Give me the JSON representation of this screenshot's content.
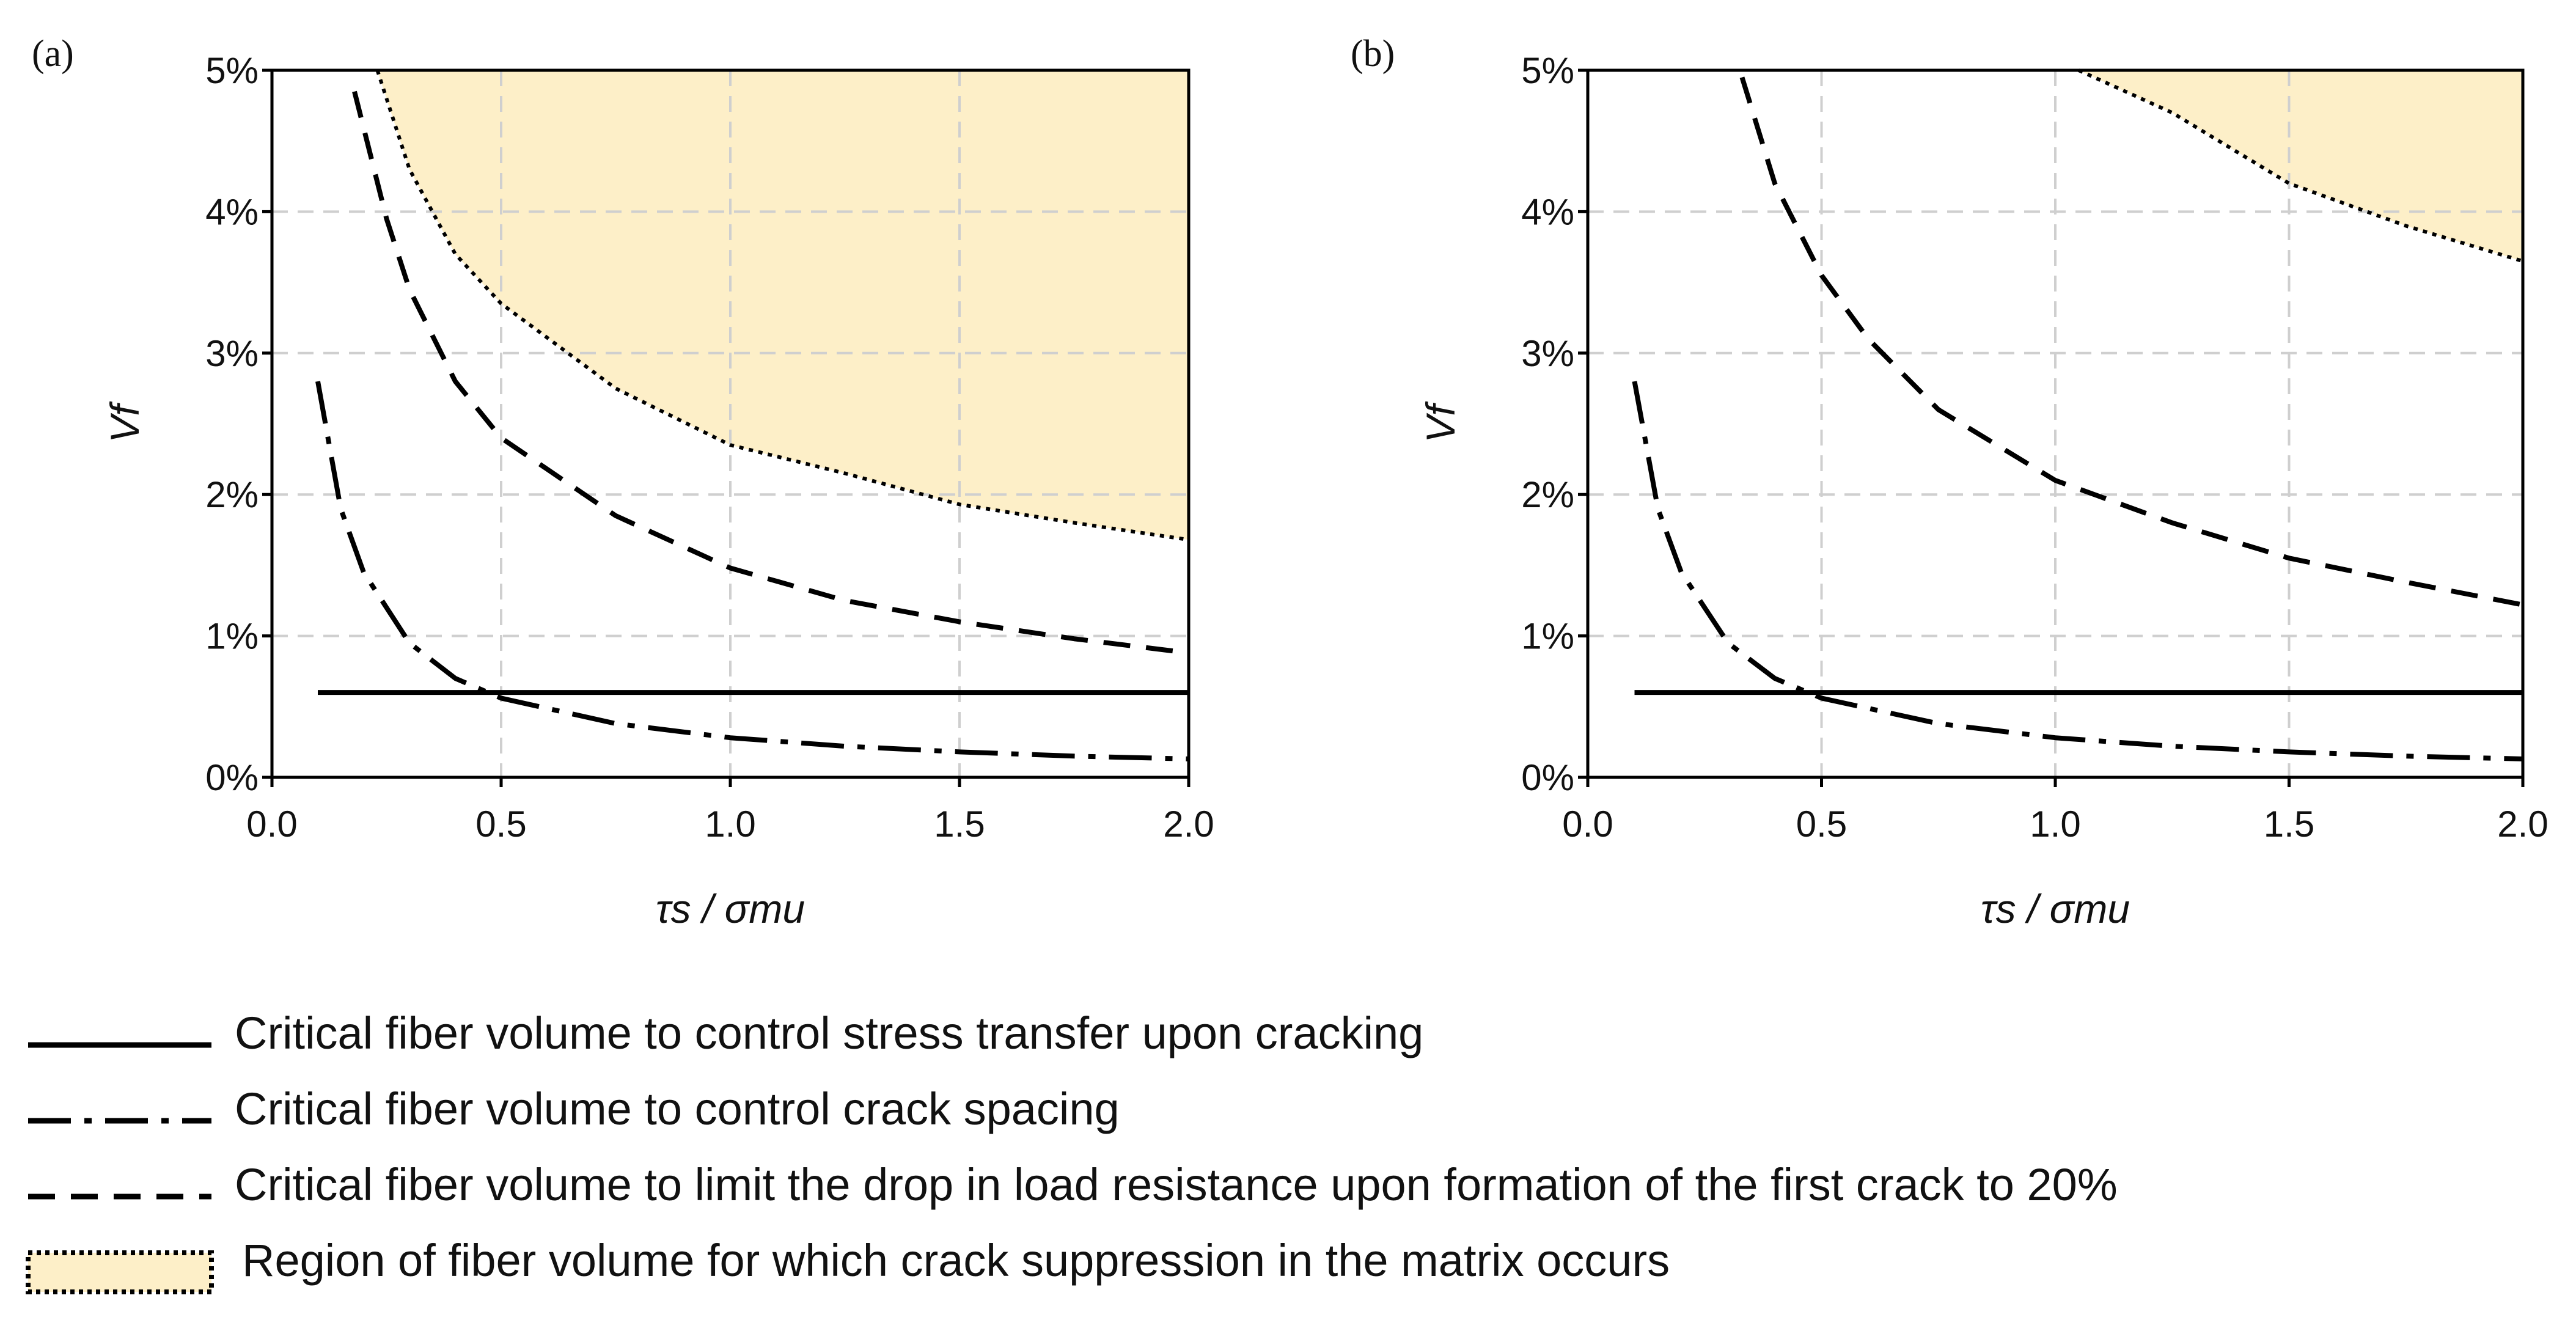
{
  "figure": {
    "legend": [
      {
        "style": "solid",
        "label": "Critical fiber volume to control stress transfer upon cracking"
      },
      {
        "style": "dashdot",
        "label": "Critical fiber volume to control crack spacing"
      },
      {
        "style": "dashed",
        "label": "Critical fiber volume to limit the drop in load resistance upon formation of the first crack to 20%"
      },
      {
        "style": "region",
        "label": "Region of fiber volume for which crack suppression in the matrix occurs"
      }
    ],
    "colors": {
      "region_fill": "#fdefc8",
      "line": "#000000",
      "grid": "#cfcfcf"
    }
  },
  "chart_data": [
    {
      "type": "line",
      "panel_label": "(a)",
      "xlabel": "τs / σmu",
      "ylabel": "Vf",
      "xlim": [
        0,
        2
      ],
      "ylim": [
        0,
        5
      ],
      "grid": true,
      "x_ticks": [
        0,
        0.5,
        1,
        1.5,
        2
      ],
      "x_tick_labels": [
        "0.0",
        "0.5",
        "1.0",
        "1.5",
        "2.0"
      ],
      "y_ticks": [
        0,
        1,
        2,
        3,
        4,
        5
      ],
      "y_tick_labels": [
        "0%",
        "1%",
        "2%",
        "3%",
        "4%",
        "5%"
      ],
      "series": [
        {
          "name": "Critical fiber volume to control stress transfer upon cracking",
          "style": "solid",
          "points": [
            [
              0.1,
              0.6
            ],
            [
              2.0,
              0.6
            ]
          ]
        },
        {
          "name": "Critical fiber volume to control crack spacing",
          "style": "dashdot",
          "points": [
            [
              0.1,
              2.8
            ],
            [
              0.15,
              1.9
            ],
            [
              0.2,
              1.45
            ],
            [
              0.3,
              0.95
            ],
            [
              0.4,
              0.7
            ],
            [
              0.5,
              0.56
            ],
            [
              0.75,
              0.38
            ],
            [
              1.0,
              0.28
            ],
            [
              1.25,
              0.22
            ],
            [
              1.5,
              0.18
            ],
            [
              1.75,
              0.15
            ],
            [
              2.0,
              0.13
            ]
          ]
        },
        {
          "name": "Critical fiber volume to limit the drop in load resistance upon formation of the first crack to 20%",
          "style": "dashed",
          "points": [
            [
              0.18,
              4.85
            ],
            [
              0.25,
              3.95
            ],
            [
              0.3,
              3.45
            ],
            [
              0.4,
              2.8
            ],
            [
              0.5,
              2.4
            ],
            [
              0.75,
              1.85
            ],
            [
              1.0,
              1.48
            ],
            [
              1.25,
              1.25
            ],
            [
              1.5,
              1.1
            ],
            [
              1.75,
              0.98
            ],
            [
              2.0,
              0.88
            ]
          ]
        },
        {
          "name": "Region of fiber volume for which crack suppression in the matrix occurs",
          "style": "dotted-region",
          "points": [
            [
              0.23,
              5.0
            ],
            [
              0.3,
              4.3
            ],
            [
              0.4,
              3.7
            ],
            [
              0.5,
              3.35
            ],
            [
              0.75,
              2.75
            ],
            [
              1.0,
              2.35
            ],
            [
              1.25,
              2.15
            ],
            [
              1.5,
              1.93
            ],
            [
              1.75,
              1.8
            ],
            [
              2.0,
              1.68
            ]
          ]
        }
      ]
    },
    {
      "type": "line",
      "panel_label": "(b)",
      "xlabel": "τs / σmu",
      "ylabel": "Vf",
      "xlim": [
        0,
        2
      ],
      "ylim": [
        0,
        5
      ],
      "grid": true,
      "x_ticks": [
        0,
        0.5,
        1,
        1.5,
        2
      ],
      "x_tick_labels": [
        "0.0",
        "0.5",
        "1.0",
        "1.5",
        "2.0"
      ],
      "y_ticks": [
        0,
        1,
        2,
        3,
        4,
        5
      ],
      "y_tick_labels": [
        "0%",
        "1%",
        "2%",
        "3%",
        "4%",
        "5%"
      ],
      "series": [
        {
          "name": "Critical fiber volume to control stress transfer upon cracking",
          "style": "solid",
          "points": [
            [
              0.1,
              0.6
            ],
            [
              2.0,
              0.6
            ]
          ]
        },
        {
          "name": "Critical fiber volume to control crack spacing",
          "style": "dashdot",
          "points": [
            [
              0.1,
              2.8
            ],
            [
              0.15,
              1.9
            ],
            [
              0.2,
              1.45
            ],
            [
              0.3,
              0.95
            ],
            [
              0.4,
              0.7
            ],
            [
              0.5,
              0.56
            ],
            [
              0.75,
              0.38
            ],
            [
              1.0,
              0.28
            ],
            [
              1.25,
              0.22
            ],
            [
              1.5,
              0.18
            ],
            [
              1.75,
              0.15
            ],
            [
              2.0,
              0.13
            ]
          ]
        },
        {
          "name": "Critical fiber volume to limit the drop in load resistance upon formation of the first crack to 20%",
          "style": "dashed",
          "points": [
            [
              0.33,
              4.95
            ],
            [
              0.4,
              4.2
            ],
            [
              0.5,
              3.55
            ],
            [
              0.6,
              3.1
            ],
            [
              0.75,
              2.6
            ],
            [
              1.0,
              2.1
            ],
            [
              1.25,
              1.8
            ],
            [
              1.5,
              1.55
            ],
            [
              1.75,
              1.38
            ],
            [
              2.0,
              1.22
            ]
          ]
        },
        {
          "name": "Region of fiber volume for which crack suppression in the matrix occurs",
          "style": "dotted-region",
          "points": [
            [
              1.05,
              5.0
            ],
            [
              1.25,
              4.7
            ],
            [
              1.5,
              4.2
            ],
            [
              1.75,
              3.9
            ],
            [
              2.0,
              3.65
            ]
          ]
        }
      ]
    }
  ]
}
